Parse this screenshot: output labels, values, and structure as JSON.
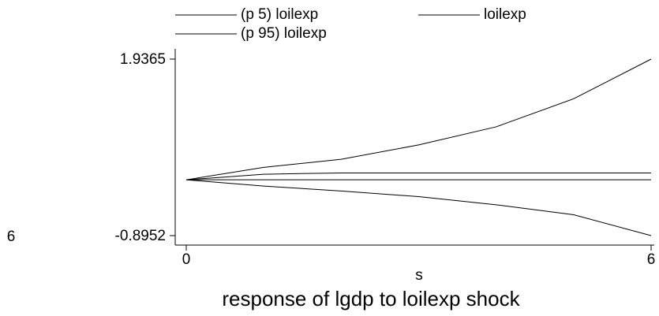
{
  "chart_data": {
    "type": "line",
    "title": "response of lgdp to loilexp shock",
    "x_label": "s",
    "stray_label": "6",
    "x": [
      0,
      1,
      2,
      3,
      4,
      5,
      6
    ],
    "series": [
      {
        "name": "(p 5) loilexp",
        "color": "#000000",
        "values": [
          0,
          -0.1,
          -0.18,
          -0.27,
          -0.4,
          -0.56,
          -0.8952
        ]
      },
      {
        "name": "loilexp",
        "color": "#000000",
        "values": [
          0,
          0.09,
          0.11,
          0.11,
          0.11,
          0.11,
          0.11
        ]
      },
      {
        "name": "(p 95) loilexp",
        "color": "#000000",
        "values": [
          0,
          0.2,
          0.33,
          0.56,
          0.85,
          1.3,
          1.9365
        ]
      }
    ],
    "yline": 0,
    "xlim": [
      0,
      6
    ],
    "xticks": [
      0,
      6
    ],
    "ylim": [
      -0.8952,
      1.9365
    ],
    "yticks": [
      {
        "value": -0.8952,
        "label": "-0.8952"
      },
      {
        "value": 1.9365,
        "label": "1.9365"
      }
    ],
    "grid": false
  }
}
